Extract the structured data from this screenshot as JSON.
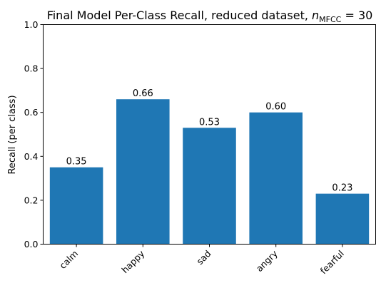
{
  "chart_data": {
    "type": "bar",
    "title_main": "Final Model Per-Class Recall, reduced dataset, ",
    "title_math": {
      "variable": "n",
      "subscript": "MFCC",
      "equals": " = 30"
    },
    "xlabel": "",
    "ylabel": "Recall (per class)",
    "categories": [
      "calm",
      "happy",
      "sad",
      "angry",
      "fearful"
    ],
    "values": [
      0.35,
      0.66,
      0.53,
      0.6,
      0.23
    ],
    "data_labels": [
      "0.35",
      "0.66",
      "0.53",
      "0.60",
      "0.23"
    ],
    "ylim": [
      0,
      1.0
    ],
    "yticks": [
      0.0,
      0.2,
      0.4,
      0.6,
      0.8,
      1.0
    ],
    "ytick_labels": [
      "0.0",
      "0.2",
      "0.4",
      "0.6",
      "0.8",
      "1.0"
    ],
    "grid": false,
    "bar_color": "#1f77b4",
    "xtick_rotation": "45 degrees"
  }
}
